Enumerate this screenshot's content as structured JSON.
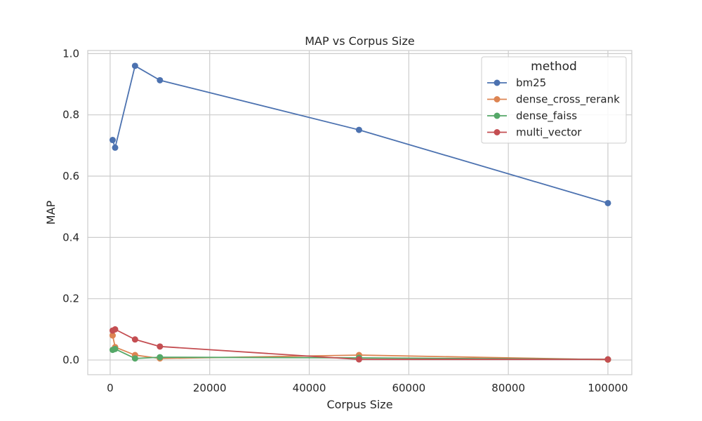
{
  "chart_data": {
    "type": "line",
    "title": "MAP vs Corpus Size",
    "xlabel": "Corpus Size",
    "ylabel": "MAP",
    "xlim": [
      -4500,
      104800
    ],
    "ylim": [
      -0.048,
      1.01
    ],
    "xticks": [
      0,
      20000,
      40000,
      60000,
      80000,
      100000
    ],
    "xtick_labels": [
      "0",
      "20000",
      "40000",
      "60000",
      "80000",
      "100000"
    ],
    "yticks": [
      0.0,
      0.2,
      0.4,
      0.6,
      0.8,
      1.0
    ],
    "ytick_labels": [
      "0.0",
      "0.2",
      "0.4",
      "0.6",
      "0.8",
      "1.0"
    ],
    "grid": true,
    "legend": {
      "title": "method",
      "placement": "top-right"
    },
    "series": [
      {
        "name": "bm25",
        "color": "#4c72b0",
        "x": [
          500,
          1000,
          5000,
          10000,
          50000,
          100000
        ],
        "y": [
          0.718,
          0.693,
          0.96,
          0.913,
          0.751,
          0.512
        ]
      },
      {
        "name": "dense_cross_rerank",
        "color": "#dd8452",
        "x": [
          500,
          1000,
          5000,
          10000,
          50000,
          100000
        ],
        "y": [
          0.08,
          0.042,
          0.016,
          0.005,
          0.016,
          0.001
        ]
      },
      {
        "name": "dense_faiss",
        "color": "#55a868",
        "x": [
          500,
          1000,
          5000,
          10000,
          50000,
          100000
        ],
        "y": [
          0.033,
          0.036,
          0.005,
          0.009,
          0.007,
          0.002
        ]
      },
      {
        "name": "multi_vector",
        "color": "#c44e52",
        "x": [
          500,
          1000,
          5000,
          10000,
          50000,
          100000
        ],
        "y": [
          0.096,
          0.1,
          0.067,
          0.044,
          0.002,
          0.002
        ]
      }
    ]
  }
}
